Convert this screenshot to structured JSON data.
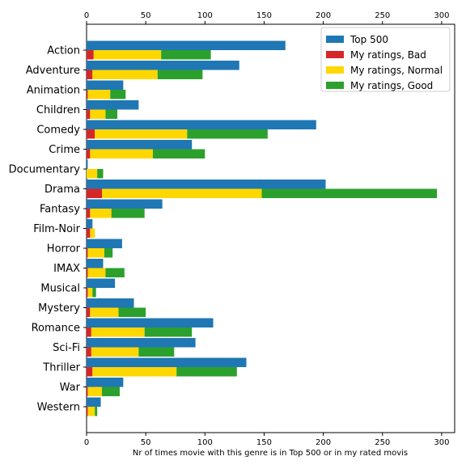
{
  "chart_data": {
    "type": "bar",
    "orientation": "horizontal",
    "categories": [
      "Action",
      "Adventure",
      "Animation",
      "Children",
      "Comedy",
      "Crime",
      "Documentary",
      "Drama",
      "Fantasy",
      "Film-Noir",
      "Horror",
      "IMAX",
      "Musical",
      "Mystery",
      "Romance",
      "Sci-Fi",
      "Thriller",
      "War",
      "Western"
    ],
    "series": [
      {
        "name": "Top 500",
        "color": "#1f77b4",
        "values": [
          168,
          129,
          31,
          44,
          194,
          89,
          1,
          202,
          64,
          5,
          30,
          14,
          24,
          40,
          107,
          92,
          135,
          31,
          12
        ]
      },
      {
        "name": "My ratings, Bad",
        "color": "#d62728",
        "values": [
          6,
          5,
          1,
          3,
          7,
          3,
          0,
          13,
          3,
          3,
          1,
          1,
          1,
          3,
          4,
          4,
          5,
          1,
          1
        ]
      },
      {
        "name": "My ratings, Normal",
        "color": "#ffd700",
        "values": [
          57,
          55,
          19,
          13,
          78,
          53,
          9,
          135,
          18,
          4,
          14,
          15,
          4,
          24,
          45,
          40,
          71,
          12,
          6
        ]
      },
      {
        "name": "My ratings, Good",
        "color": "#2ca02c",
        "values": [
          42,
          38,
          13,
          10,
          68,
          44,
          5,
          148,
          28,
          0,
          7,
          16,
          3,
          23,
          40,
          30,
          51,
          15,
          2
        ]
      }
    ],
    "xlabel": "Nr of times movie with this genre is in Top 500 or in my rated movis",
    "ylabel": "",
    "xlim": [
      0,
      310
    ],
    "xticks": [
      "0",
      "50",
      "100",
      "150",
      "200",
      "250",
      "300"
    ],
    "xtick_values": [
      0,
      50,
      100,
      150,
      200,
      250,
      300
    ],
    "legend_position": "top-right",
    "grid": false
  }
}
